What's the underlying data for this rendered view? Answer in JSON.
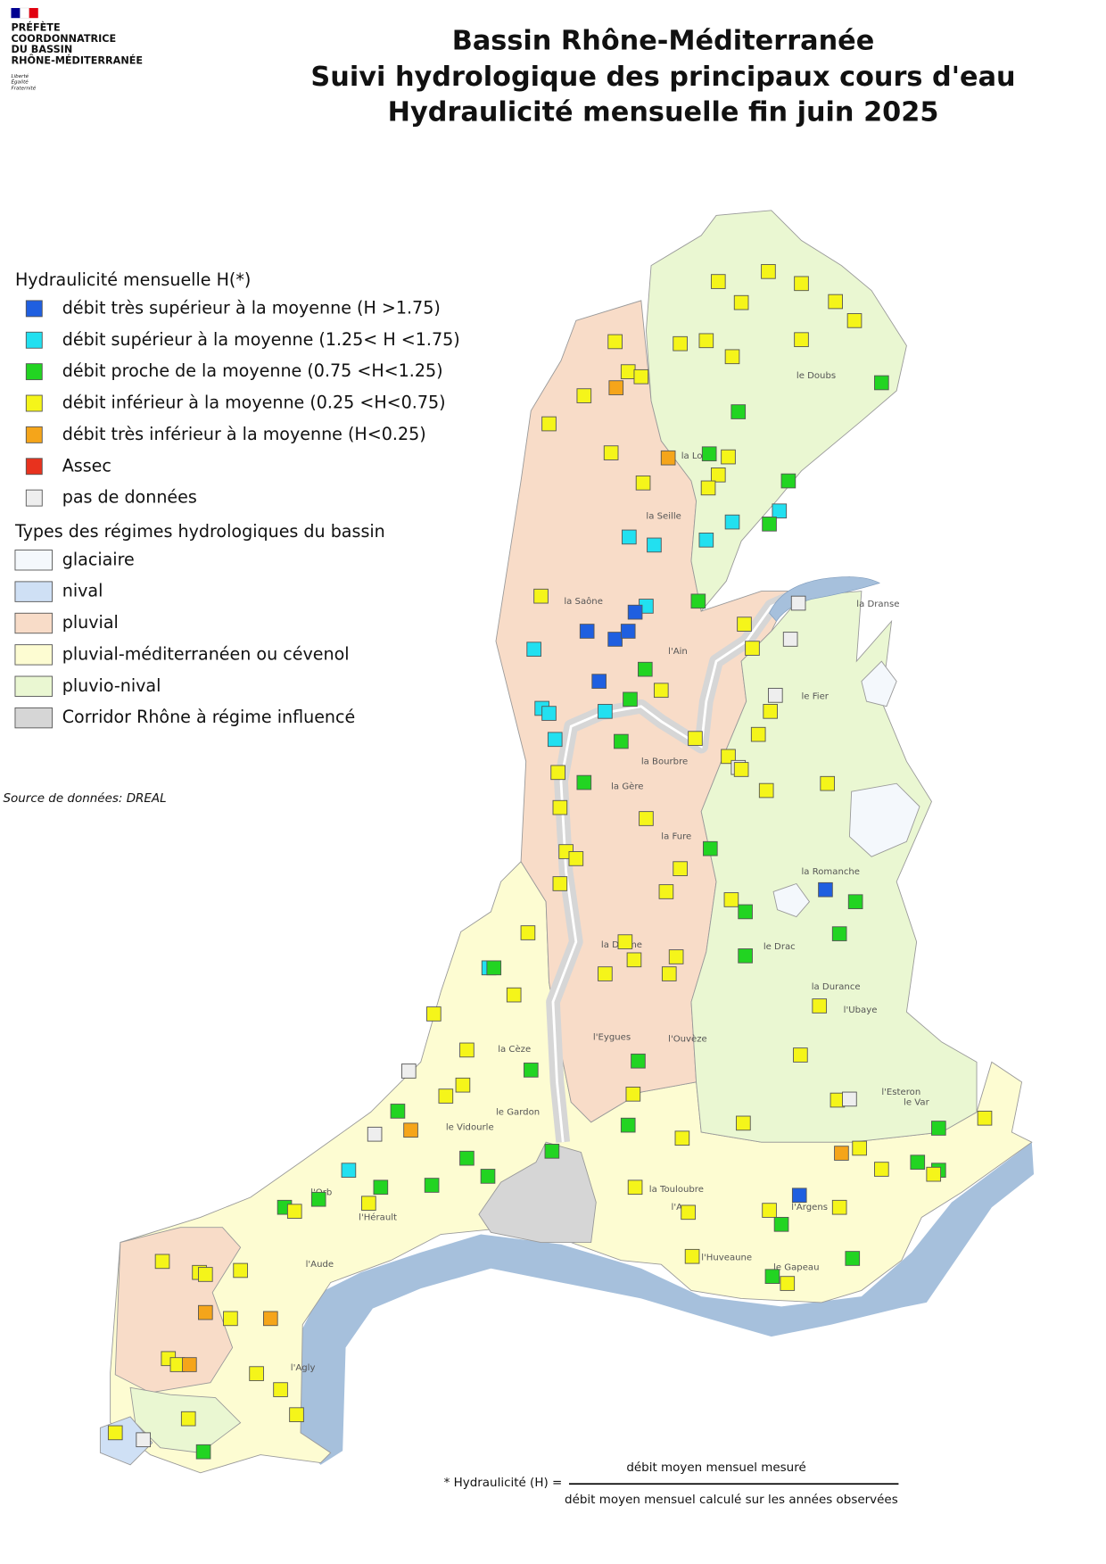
{
  "logo": {
    "lines": [
      "PRÉFÈTE",
      "COORDONNATRICE",
      "DU BASSIN",
      "RHÔNE-MÉDITERRANÉE"
    ],
    "motto": [
      "Liberté",
      "Égalité",
      "Fraternité"
    ]
  },
  "title": [
    "Bassin Rhône-Méditerranée",
    "Suivi hydrologique des principaux cours d'eau",
    "Hydraulicité mensuelle  fin juin 2025"
  ],
  "legend": {
    "title": "Hydraulicité mensuelle H(*)",
    "items": [
      {
        "label": "débit très supérieur à la moyenne (H >1.75)",
        "color": "#1f5fe0"
      },
      {
        "label": "débit  supérieur à la moyenne (1.25< H <1.75)",
        "color": "#22e0f0"
      },
      {
        "label": "débit  proche de la moyenne (0.75 <H<1.25)",
        "color": "#22d422"
      },
      {
        "label": "débit  inférieur à la moyenne (0.25 <H<0.75)",
        "color": "#f5f51a"
      },
      {
        "label": "débit  très inférieur à la moyenne (H<0.25)",
        "color": "#f5a51a"
      },
      {
        "label": "Assec",
        "color": "#e8321e"
      },
      {
        "label": "pas de données",
        "color": "#eeeeee"
      }
    ]
  },
  "regimes": {
    "title": "Types des régimes hydrologiques du bassin",
    "items": [
      {
        "label": "glaciaire",
        "color": "#f4f8fc"
      },
      {
        "label": "nival",
        "color": "#cfe0f5"
      },
      {
        "label": "pluvial",
        "color": "#f8dcc8"
      },
      {
        "label": "pluvial-méditerranéen ou cévenol",
        "color": "#fdfcd2"
      },
      {
        "label": "pluvio-nival",
        "color": "#eaf7d2"
      },
      {
        "label": "Corridor Rhône à régime influencé",
        "color": "#d6d6d6"
      }
    ]
  },
  "source": "Source de données: DREAL",
  "formula": {
    "label": "* Hydraulicité (H) =",
    "numerator": "débit moyen mensuel mesuré",
    "denominator": "débit moyen mensuel calculé sur les années observées"
  },
  "rivers": [
    "le Doubs",
    "la Loue",
    "la Saône",
    "la Seille",
    "l'Ain",
    "la Bourbre",
    "la Gère",
    "la Fure",
    "la Romanche",
    "le Drac",
    "la Drôme",
    "l'Eygues",
    "l'Ouvèze",
    "la Durance",
    "l'Ubaye",
    "le Var",
    "l'Esteron",
    "la Cèze",
    "le Gardon",
    "le Vidourle",
    "l'Hérault",
    "l'Orb",
    "l'Aude",
    "l'Agly",
    "l'Argens",
    "le Gapeau",
    "l'Huveaune",
    "l'Arc",
    "la Touloubre",
    "le Fier",
    "la Dranse"
  ]
}
